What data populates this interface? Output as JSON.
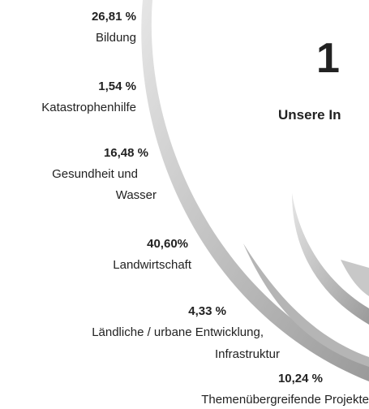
{
  "heading": {
    "number": "1",
    "title": "Unsere In"
  },
  "items": [
    {
      "value": "26,81 %",
      "label": [
        "Bildung"
      ]
    },
    {
      "value": "1,54 %",
      "label": [
        "Katastrophenhilfe"
      ]
    },
    {
      "value": "16,48 %",
      "label": [
        "Gesundheit und",
        "Wasser"
      ]
    },
    {
      "value": "40,60%",
      "label": [
        "Landwirtschaft"
      ]
    },
    {
      "value": "4,33 %",
      "label": [
        "Ländliche / urbane Entwicklung,",
        "Infrastruktur"
      ]
    },
    {
      "value": "10,24 %",
      "label": [
        "Themenübergreifende Projekte"
      ]
    }
  ]
}
